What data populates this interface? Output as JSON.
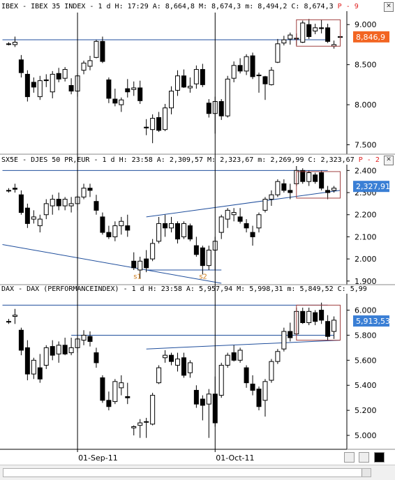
{
  "colors": {
    "axis_line": "#000000",
    "trend_line": "#1f4e9c",
    "label_ibex": "#f26522",
    "label_other": "#3a7fd5",
    "highlight_box": "#a04040",
    "annotation": "#d08020"
  },
  "chart_data": [
    {
      "type": "candlestick",
      "header": "IBEX - IBEX 35 INDEX  -  1 d H: 17:29 A: 8,664,8 M: 8,674,3 m: 8,494,2 C: 8,674,3",
      "header_tag": "P - 9",
      "ylim": [
        7400,
        9150
      ],
      "y_ticks": [
        7500,
        8000,
        8500,
        9000
      ],
      "y_tick_labels": [
        "7.500",
        "8.000",
        "8.500",
        "9.000"
      ],
      "last_label": "8,846,9",
      "last_value": 8846.9,
      "candles": [
        [
          8760,
          8780,
          8740,
          8760
        ],
        [
          8750,
          8850,
          8720,
          8780
        ],
        [
          8560,
          8620,
          8340,
          8400
        ],
        [
          8380,
          8430,
          8040,
          8100
        ],
        [
          8280,
          8340,
          8150,
          8220
        ],
        [
          8100,
          8360,
          8060,
          8300
        ],
        [
          8310,
          8380,
          8220,
          8300
        ],
        [
          8160,
          8420,
          8080,
          8380
        ],
        [
          8390,
          8460,
          8280,
          8320
        ],
        [
          8330,
          8470,
          8290,
          8440
        ],
        [
          8240,
          8330,
          8130,
          8170
        ],
        [
          8170,
          8390,
          8100,
          8360
        ],
        [
          8430,
          8550,
          8380,
          8520
        ],
        [
          8480,
          8610,
          8430,
          8550
        ],
        [
          8590,
          8810,
          8580,
          8790
        ],
        [
          8790,
          8850,
          8520,
          8540
        ],
        [
          8310,
          8340,
          8020,
          8080
        ],
        [
          8070,
          8200,
          7980,
          8020
        ],
        [
          8000,
          8090,
          7910,
          8060
        ],
        [
          8200,
          8320,
          8090,
          8160
        ],
        [
          8190,
          8290,
          8110,
          8210
        ],
        [
          8210,
          8300,
          8010,
          8050
        ],
        [
          7720,
          7820,
          7620,
          7710
        ],
        [
          7690,
          7880,
          7520,
          7830
        ],
        [
          7840,
          7910,
          7660,
          7680
        ],
        [
          7690,
          8010,
          7670,
          7960
        ],
        [
          7960,
          8230,
          7880,
          8170
        ],
        [
          8180,
          8430,
          8110,
          8360
        ],
        [
          8360,
          8440,
          8210,
          8220
        ],
        [
          8210,
          8340,
          8150,
          8230
        ],
        [
          8260,
          8490,
          8200,
          8440
        ],
        [
          8440,
          8510,
          8220,
          8250
        ],
        [
          8020,
          8070,
          7840,
          7890
        ],
        [
          7890,
          8100,
          7640,
          8040
        ],
        [
          8040,
          8070,
          7810,
          7860
        ],
        [
          7860,
          8360,
          7840,
          8320
        ],
        [
          8330,
          8540,
          8280,
          8490
        ],
        [
          8490,
          8580,
          8390,
          8420
        ],
        [
          8420,
          8630,
          8370,
          8600
        ],
        [
          8610,
          8650,
          8320,
          8350
        ],
        [
          8370,
          8400,
          8150,
          8370
        ],
        [
          8350,
          8360,
          8060,
          8260
        ],
        [
          8250,
          8470,
          8240,
          8430
        ],
        [
          8530,
          8820,
          8520,
          8760
        ],
        [
          8770,
          8860,
          8740,
          8810
        ],
        [
          8820,
          8900,
          8750,
          8870
        ],
        [
          8820,
          8890,
          8740,
          8830
        ],
        [
          8780,
          9050,
          8770,
          9020
        ],
        [
          9000,
          9070,
          8820,
          8850
        ],
        [
          8920,
          9010,
          8880,
          8960
        ],
        [
          8960,
          9060,
          8890,
          8950
        ],
        [
          8960,
          9010,
          8770,
          8790
        ],
        [
          8730,
          8800,
          8700,
          8750
        ],
        [
          8840,
          8900,
          8800,
          8850
        ]
      ],
      "lines": [
        {
          "x0": -1,
          "v0": 8810,
          "x1": 51,
          "v1": 8810
        },
        {
          "x0": -1,
          "v0": 8870,
          "x1": -1,
          "v1": 8870
        }
      ],
      "box": {
        "x0": 46.5,
        "x1": 53.5,
        "v0": 9060,
        "v1": 8730
      }
    },
    {
      "type": "candlestick",
      "header": "SX5E - DJES 50 PR,EUR  -  1 d H: 23:58 A: 2,309,57 M: 2,323,67 m: 2,269,99 C: 2,323,67",
      "header_tag": "P - 2",
      "ylim": [
        1890,
        2420
      ],
      "y_ticks": [
        1900,
        2000,
        2100,
        2200,
        2300,
        2400
      ],
      "y_tick_labels": [
        "1.900",
        "2.000",
        "2.100",
        "2.200",
        "2.300",
        "2.400"
      ],
      "last_label": "2,327,91",
      "last_value": 2327.91,
      "annotations": [
        "s1",
        "s2"
      ],
      "candles": [
        [
          2310,
          2320,
          2300,
          2310
        ],
        [
          2320,
          2340,
          2300,
          2315
        ],
        [
          2290,
          2310,
          2200,
          2210
        ],
        [
          2230,
          2250,
          2140,
          2160
        ],
        [
          2180,
          2220,
          2160,
          2190
        ],
        [
          2150,
          2200,
          2120,
          2180
        ],
        [
          2200,
          2270,
          2180,
          2250
        ],
        [
          2240,
          2290,
          2200,
          2270
        ],
        [
          2270,
          2300,
          2220,
          2240
        ],
        [
          2240,
          2280,
          2220,
          2270
        ],
        [
          2240,
          2280,
          2210,
          2250
        ],
        [
          2250,
          2290,
          2220,
          2280
        ],
        [
          2280,
          2340,
          2270,
          2320
        ],
        [
          2320,
          2340,
          2280,
          2310
        ],
        [
          2260,
          2290,
          2200,
          2220
        ],
        [
          2190,
          2210,
          2110,
          2120
        ],
        [
          2120,
          2150,
          2090,
          2100
        ],
        [
          2100,
          2170,
          2080,
          2150
        ],
        [
          2150,
          2190,
          2110,
          2170
        ],
        [
          2150,
          2200,
          2100,
          2130
        ],
        [
          1990,
          2030,
          1950,
          1960
        ],
        [
          1950,
          2010,
          1910,
          1990
        ],
        [
          2000,
          2040,
          1940,
          1960
        ],
        [
          2000,
          2090,
          1990,
          2070
        ],
        [
          2080,
          2190,
          2070,
          2160
        ],
        [
          2160,
          2200,
          2100,
          2140
        ],
        [
          2140,
          2190,
          2120,
          2160
        ],
        [
          2160,
          2170,
          2070,
          2090
        ],
        [
          2100,
          2170,
          2090,
          2160
        ],
        [
          2150,
          2160,
          2080,
          2090
        ],
        [
          2060,
          2100,
          2010,
          2020
        ],
        [
          2050,
          2060,
          1930,
          1970
        ],
        [
          1970,
          2060,
          1950,
          2040
        ],
        [
          2040,
          2100,
          1950,
          2080
        ],
        [
          2120,
          2200,
          2090,
          2190
        ],
        [
          2180,
          2230,
          2140,
          2220
        ],
        [
          2200,
          2230,
          2170,
          2210
        ],
        [
          2190,
          2230,
          2160,
          2170
        ],
        [
          2160,
          2180,
          2120,
          2140
        ],
        [
          2120,
          2150,
          2060,
          2100
        ],
        [
          2140,
          2210,
          2120,
          2200
        ],
        [
          2220,
          2280,
          2210,
          2270
        ],
        [
          2270,
          2310,
          2240,
          2290
        ],
        [
          2290,
          2360,
          2280,
          2350
        ],
        [
          2340,
          2360,
          2300,
          2310
        ],
        [
          2310,
          2340,
          2270,
          2300
        ],
        [
          2340,
          2420,
          2330,
          2400
        ],
        [
          2400,
          2410,
          2340,
          2350
        ],
        [
          2350,
          2400,
          2330,
          2390
        ],
        [
          2380,
          2390,
          2340,
          2350
        ],
        [
          2390,
          2400,
          2310,
          2320
        ],
        [
          2310,
          2330,
          2270,
          2300
        ],
        [
          2310,
          2330,
          2300,
          2320
        ]
      ],
      "lines": [
        {
          "x0": -1,
          "v0": 2400,
          "x1": 51,
          "v1": 2400
        },
        {
          "x0": -1,
          "v0": 2065,
          "x1": 34,
          "v1": 1890
        },
        {
          "x0": 22,
          "v0": 1950,
          "x1": 34,
          "v1": 1950
        },
        {
          "x0": 22,
          "v0": 2190,
          "x1": 53,
          "v1": 2310
        }
      ],
      "box": {
        "x0": 46.5,
        "x1": 53.5,
        "v0": 2395,
        "v1": 2275
      }
    },
    {
      "type": "candlestick",
      "header": "DAX - DAX (PERFORMANCEINDEX)  -  1 d H: 23:58 A: 5,957,94 M: 5,998,31 m: 5,849,52 C: 5,99",
      "header_tag": "",
      "ylim": [
        4900,
        6120
      ],
      "y_ticks": [
        5000,
        5200,
        5400,
        5600,
        5800,
        6000
      ],
      "y_tick_labels": [
        "5.000",
        "5.200",
        "5.400",
        "5.600",
        "5.800",
        "6.000"
      ],
      "last_label": "5,913,53",
      "last_value": 5913.53,
      "candles": [
        [
          5910,
          5930,
          5890,
          5910
        ],
        [
          5950,
          6010,
          5890,
          5960
        ],
        [
          5840,
          5860,
          5640,
          5680
        ],
        [
          5700,
          5760,
          5440,
          5490
        ],
        [
          5490,
          5620,
          5450,
          5600
        ],
        [
          5540,
          5650,
          5420,
          5450
        ],
        [
          5560,
          5720,
          5530,
          5700
        ],
        [
          5710,
          5760,
          5600,
          5640
        ],
        [
          5650,
          5750,
          5580,
          5720
        ],
        [
          5720,
          5780,
          5640,
          5650
        ],
        [
          5660,
          5780,
          5640,
          5700
        ],
        [
          5700,
          5790,
          5660,
          5770
        ],
        [
          5760,
          5840,
          5720,
          5800
        ],
        [
          5790,
          5830,
          5710,
          5750
        ],
        [
          5660,
          5700,
          5540,
          5580
        ],
        [
          5460,
          5480,
          5260,
          5280
        ],
        [
          5280,
          5350,
          5200,
          5230
        ],
        [
          5270,
          5450,
          5250,
          5430
        ],
        [
          5380,
          5480,
          5320,
          5420
        ],
        [
          5310,
          5420,
          5250,
          5300
        ],
        [
          5060,
          5080,
          5000,
          5070
        ],
        [
          5080,
          5130,
          4980,
          5100
        ],
        [
          5110,
          5140,
          4980,
          5110
        ],
        [
          5090,
          5340,
          5080,
          5320
        ],
        [
          5420,
          5560,
          5410,
          5540
        ],
        [
          5620,
          5680,
          5580,
          5640
        ],
        [
          5640,
          5660,
          5560,
          5590
        ],
        [
          5560,
          5660,
          5510,
          5610
        ],
        [
          5620,
          5660,
          5460,
          5480
        ],
        [
          5500,
          5600,
          5460,
          5580
        ],
        [
          5360,
          5400,
          5220,
          5250
        ],
        [
          5290,
          5320,
          5120,
          5240
        ],
        [
          5250,
          5370,
          4980,
          5330
        ],
        [
          5330,
          5470,
          5070,
          5100
        ],
        [
          5320,
          5580,
          5300,
          5560
        ],
        [
          5560,
          5660,
          5540,
          5640
        ],
        [
          5660,
          5720,
          5590,
          5600
        ],
        [
          5600,
          5700,
          5580,
          5680
        ],
        [
          5540,
          5560,
          5380,
          5420
        ],
        [
          5410,
          5480,
          5320,
          5360
        ],
        [
          5370,
          5390,
          5200,
          5230
        ],
        [
          5280,
          5450,
          5150,
          5430
        ],
        [
          5440,
          5610,
          5420,
          5590
        ],
        [
          5590,
          5690,
          5570,
          5670
        ],
        [
          5690,
          5860,
          5670,
          5830
        ],
        [
          5830,
          5900,
          5750,
          5780
        ],
        [
          5810,
          6020,
          5800,
          5990
        ],
        [
          5990,
          6020,
          5890,
          5900
        ],
        [
          5900,
          6020,
          5880,
          5990
        ],
        [
          5980,
          6000,
          5880,
          5910
        ],
        [
          6000,
          6060,
          5890,
          5920
        ],
        [
          5910,
          5960,
          5760,
          5790
        ],
        [
          5830,
          5950,
          5770,
          5920
        ]
      ],
      "lines": [
        {
          "x0": -1,
          "v0": 6040,
          "x1": 51,
          "v1": 6040
        },
        {
          "x0": 10,
          "v0": 5800,
          "x1": 52,
          "v1": 5800
        },
        {
          "x0": 22,
          "v0": 5690,
          "x1": 53,
          "v1": 5760
        }
      ],
      "box": {
        "x0": 46.5,
        "x1": 53.5,
        "v0": 6040,
        "v1": 5760
      }
    }
  ],
  "x_axis": {
    "labels": [
      "01-Sep-11",
      "01-Oct-11"
    ],
    "label_positions": [
      11,
      33
    ]
  },
  "toolbar": {
    "icons": [
      "print-icon",
      "save-icon",
      "color-square-icon"
    ]
  }
}
